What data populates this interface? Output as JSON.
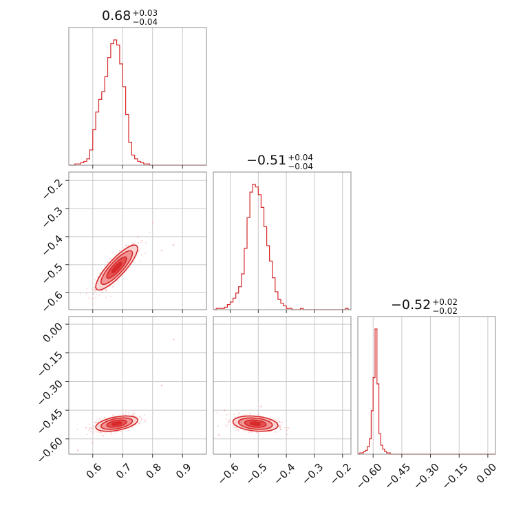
{
  "figure": {
    "colors": {
      "accent": "#d62728",
      "fill_light": "#f9d3d2",
      "fill_mid": "#f08a8a",
      "fill_dark": "#e04545",
      "points": "#f4a9a8",
      "grid": "#c8c8c8",
      "frame": "#888888"
    }
  },
  "chart_data": {
    "type": "corner",
    "parameters": [
      {
        "title_value": "0.68",
        "title_plus": "+0.03",
        "title_minus": "−0.04",
        "range": [
          0.52,
          0.98
        ],
        "ticks": [
          0.6,
          0.7,
          0.8,
          0.9
        ],
        "tick_labels": [
          "0.6",
          "0.7",
          "0.8",
          "0.9"
        ]
      },
      {
        "title_value": "−0.51",
        "title_plus": "+0.04",
        "title_minus": "−0.04",
        "range": [
          -0.66,
          -0.17
        ],
        "ticks": [
          -0.6,
          -0.5,
          -0.4,
          -0.3,
          -0.2
        ],
        "tick_labels": [
          "−0.6",
          "−0.5",
          "−0.4",
          "−0.3",
          "−0.2"
        ]
      },
      {
        "title_value": "−0.52",
        "title_plus": "+0.02",
        "title_minus": "−0.02",
        "range": [
          -0.68,
          0.04
        ],
        "ticks": [
          -0.6,
          -0.45,
          -0.3,
          -0.15,
          0.0
        ],
        "tick_labels": [
          "−0.60",
          "−0.45",
          "−0.30",
          "−0.15",
          "0.00"
        ]
      }
    ],
    "histograms": [
      {
        "bin_start": 0.52,
        "bin_width": 0.01,
        "counts": [
          0,
          0,
          1,
          1,
          2,
          3,
          5,
          12,
          28,
          42,
          52,
          58,
          70,
          85,
          96,
          99,
          95,
          80,
          62,
          40,
          18,
          8,
          5,
          3,
          2,
          1,
          1,
          0,
          0,
          0,
          0,
          0,
          0,
          0,
          0,
          0,
          0,
          0,
          0,
          0,
          0,
          0,
          0,
          0,
          0,
          0
        ]
      },
      {
        "bin_start": -0.66,
        "bin_width": 0.01,
        "counts": [
          0,
          1,
          1,
          1,
          2,
          4,
          6,
          9,
          13,
          18,
          28,
          48,
          72,
          92,
          98,
          96,
          90,
          80,
          65,
          50,
          38,
          25,
          14,
          8,
          5,
          3,
          1,
          1,
          0,
          0,
          0,
          1,
          0,
          0,
          0,
          0,
          0,
          0,
          0,
          0,
          0,
          0,
          0,
          0,
          0,
          0,
          0,
          1,
          0
        ]
      },
      {
        "bin_start": -0.68,
        "bin_width": 0.01,
        "counts": [
          0,
          1,
          1,
          2,
          3,
          6,
          12,
          34,
          60,
          98,
          55,
          16,
          7,
          4,
          2,
          1,
          1,
          0,
          0,
          0,
          0,
          0,
          0,
          0,
          0,
          0,
          0,
          0,
          0,
          0,
          0,
          0,
          0,
          0,
          0,
          0,
          0,
          0,
          0,
          0,
          0,
          0,
          0,
          0,
          0,
          0,
          0,
          0,
          0,
          0,
          0,
          0,
          0,
          0,
          0,
          0,
          0,
          0,
          0,
          0,
          0,
          0,
          0,
          0,
          0,
          0,
          0,
          0,
          0,
          0,
          0,
          0
        ]
      }
    ],
    "scatter_pairs": [
      {
        "x_param": 0,
        "y_param": 1,
        "mean": [
          0.68,
          -0.51
        ],
        "sd": [
          0.035,
          0.04
        ],
        "corr": 0.85,
        "outliers": [
          [
            0.83,
            -0.45
          ],
          [
            0.87,
            -0.43
          ],
          [
            0.8,
            -0.35
          ],
          [
            0.6,
            -0.62
          ]
        ]
      },
      {
        "x_param": 0,
        "y_param": 2,
        "mean": [
          0.68,
          -0.52
        ],
        "sd": [
          0.035,
          0.02
        ],
        "corr": 0.45,
        "outliers": [
          [
            0.83,
            -0.32
          ],
          [
            0.87,
            -0.08
          ],
          [
            0.55,
            -0.66
          ],
          [
            0.6,
            -0.62
          ]
        ]
      },
      {
        "x_param": 1,
        "y_param": 2,
        "mean": [
          -0.51,
          -0.52
        ],
        "sd": [
          0.04,
          0.02
        ],
        "corr": -0.25,
        "outliers": [
          [
            -0.49,
            -0.43
          ],
          [
            -0.42,
            -0.55
          ],
          [
            -0.64,
            -0.58
          ],
          [
            -0.62,
            -0.45
          ]
        ]
      }
    ],
    "grid": true
  }
}
